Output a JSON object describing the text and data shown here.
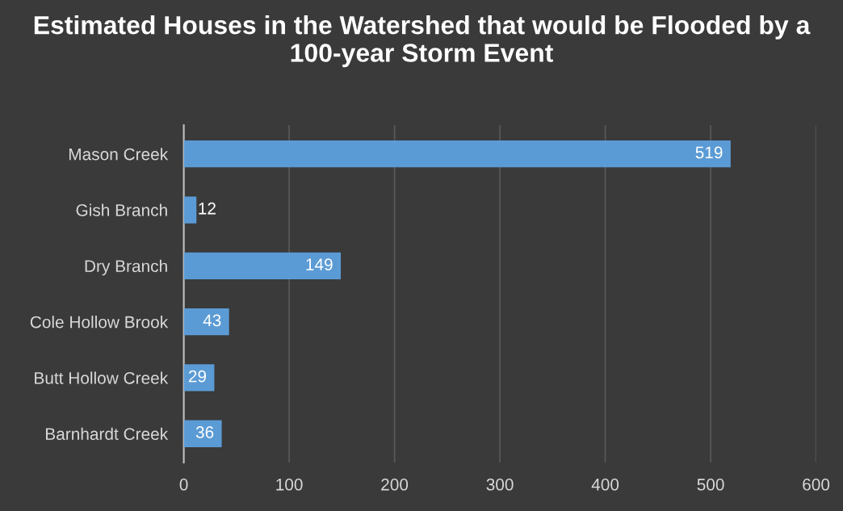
{
  "chart_data": {
    "type": "bar",
    "orientation": "horizontal",
    "title": "Estimated Houses in the Watershed that would be Flooded by a 100-year Storm Event",
    "categories": [
      "Mason Creek",
      "Gish Branch",
      "Dry Branch",
      "Cole Hollow Brook",
      "Butt Hollow Creek",
      "Barnhardt Creek"
    ],
    "values": [
      519,
      12,
      149,
      43,
      29,
      36
    ],
    "color": "#5b9bd5",
    "xlim": [
      0,
      600
    ],
    "xticks": [
      0,
      100,
      200,
      300,
      400,
      500,
      600
    ],
    "grid": "x",
    "data_labels": true,
    "legend": false
  }
}
